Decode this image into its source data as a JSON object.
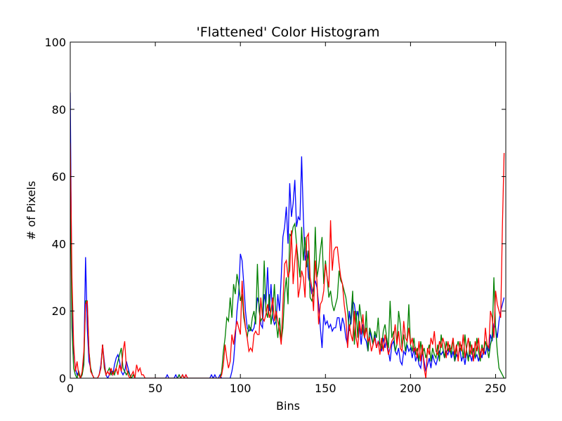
{
  "chart_data": {
    "type": "line",
    "title": "'Flattened' Color Histogram",
    "xlabel": "Bins",
    "ylabel": "# of Pixels",
    "xlim": [
      0,
      256
    ],
    "ylim": [
      0,
      100
    ],
    "xticks": [
      0,
      50,
      100,
      150,
      200,
      250
    ],
    "yticks": [
      0,
      20,
      40,
      60,
      80,
      100
    ],
    "x": [
      0,
      1,
      2,
      3,
      4,
      5,
      6,
      7,
      8,
      9,
      10,
      11,
      12,
      13,
      14,
      15,
      16,
      17,
      18,
      19,
      20,
      21,
      22,
      23,
      24,
      25,
      26,
      27,
      28,
      29,
      30,
      31,
      32,
      33,
      34,
      35,
      36,
      37,
      38,
      39,
      40,
      41,
      42,
      43,
      44,
      45,
      46,
      47,
      48,
      49,
      50,
      51,
      52,
      53,
      54,
      55,
      56,
      57,
      58,
      59,
      60,
      61,
      62,
      63,
      64,
      65,
      66,
      67,
      68,
      69,
      70,
      71,
      72,
      73,
      74,
      75,
      76,
      77,
      78,
      79,
      80,
      81,
      82,
      83,
      84,
      85,
      86,
      87,
      88,
      89,
      90,
      91,
      92,
      93,
      94,
      95,
      96,
      97,
      98,
      99,
      100,
      101,
      102,
      103,
      104,
      105,
      106,
      107,
      108,
      109,
      110,
      111,
      112,
      113,
      114,
      115,
      116,
      117,
      118,
      119,
      120,
      121,
      122,
      123,
      124,
      125,
      126,
      127,
      128,
      129,
      130,
      131,
      132,
      133,
      134,
      135,
      136,
      137,
      138,
      139,
      140,
      141,
      142,
      143,
      144,
      145,
      146,
      147,
      148,
      149,
      150,
      151,
      152,
      153,
      154,
      155,
      156,
      157,
      158,
      159,
      160,
      161,
      162,
      163,
      164,
      165,
      166,
      167,
      168,
      169,
      170,
      171,
      172,
      173,
      174,
      175,
      176,
      177,
      178,
      179,
      180,
      181,
      182,
      183,
      184,
      185,
      186,
      187,
      188,
      189,
      190,
      191,
      192,
      193,
      194,
      195,
      196,
      197,
      198,
      199,
      200,
      201,
      202,
      203,
      204,
      205,
      206,
      207,
      208,
      209,
      210,
      211,
      212,
      213,
      214,
      215,
      216,
      217,
      218,
      219,
      220,
      221,
      222,
      223,
      224,
      225,
      226,
      227,
      228,
      229,
      230,
      231,
      232,
      233,
      234,
      235,
      236,
      237,
      238,
      239,
      240,
      241,
      242,
      243,
      244,
      245,
      246,
      247,
      248,
      249,
      250,
      251,
      252,
      253,
      254,
      255
    ],
    "series": [
      {
        "color": "#0000ff",
        "values": [
          85,
          20,
          8,
          3,
          1,
          2,
          0,
          1,
          5,
          36,
          15,
          5,
          3,
          1,
          0,
          0,
          0,
          1,
          4,
          10,
          5,
          1,
          0,
          1,
          2,
          1,
          4,
          6,
          7,
          5,
          2,
          1,
          2,
          5,
          3,
          1,
          0,
          0,
          0,
          0,
          0,
          0,
          0,
          0,
          0,
          0,
          0,
          0,
          0,
          0,
          0,
          0,
          0,
          0,
          0,
          0,
          0,
          1,
          0,
          0,
          0,
          0,
          1,
          0,
          1,
          0,
          1,
          0,
          1,
          0,
          0,
          0,
          0,
          0,
          0,
          0,
          0,
          0,
          0,
          0,
          0,
          0,
          0,
          1,
          0,
          1,
          0,
          0,
          1,
          0,
          0,
          0,
          0,
          0,
          0,
          2,
          5,
          12,
          20,
          25,
          37,
          35,
          28,
          20,
          15,
          14,
          15,
          14,
          15,
          18,
          24,
          22,
          16,
          15,
          25,
          22,
          33,
          20,
          28,
          18,
          16,
          17,
          25,
          20,
          30,
          42,
          45,
          51,
          40,
          58,
          48,
          52,
          59,
          45,
          48,
          47,
          66,
          48,
          35,
          38,
          30,
          28,
          25,
          27,
          29,
          27,
          22,
          15,
          9,
          19,
          16,
          17,
          15,
          16,
          14,
          15,
          15,
          18,
          18,
          14,
          18,
          16,
          12,
          10,
          20,
          16,
          23,
          22,
          18,
          20,
          15,
          10,
          16,
          12,
          11,
          8,
          14,
          12,
          10,
          13,
          9,
          11,
          10,
          8,
          12,
          9,
          12,
          8,
          5,
          10,
          11,
          8,
          7,
          9,
          5,
          4,
          8,
          7,
          10,
          8,
          9,
          6,
          9,
          5,
          7,
          4,
          3,
          8,
          5,
          2,
          4,
          6,
          3,
          7,
          5,
          4,
          6,
          8,
          7,
          8,
          6,
          8,
          7,
          9,
          6,
          8,
          5,
          7,
          6,
          9,
          5,
          7,
          4,
          8,
          6,
          7,
          5,
          9,
          6,
          7,
          5,
          8,
          6,
          9,
          7,
          10,
          8,
          13,
          11,
          16,
          15,
          12,
          17,
          20,
          22,
          24
        ]
      },
      {
        "color": "#008000",
        "values": [
          60,
          15,
          3,
          1,
          0,
          2,
          0,
          1,
          4,
          23,
          23,
          8,
          3,
          1,
          0,
          0,
          0,
          1,
          3,
          10,
          3,
          1,
          2,
          3,
          1,
          2,
          1,
          3,
          5,
          7,
          9,
          3,
          2,
          1,
          2,
          1,
          0,
          1,
          0,
          0,
          0,
          0,
          0,
          0,
          0,
          0,
          0,
          0,
          0,
          0,
          0,
          0,
          0,
          0,
          0,
          0,
          0,
          0,
          0,
          0,
          0,
          0,
          0,
          0,
          1,
          0,
          1,
          0,
          0,
          0,
          0,
          0,
          0,
          0,
          0,
          0,
          0,
          0,
          0,
          0,
          0,
          0,
          0,
          0,
          0,
          0,
          0,
          0,
          0,
          2,
          8,
          12,
          18,
          17,
          24,
          18,
          28,
          25,
          31,
          28,
          23,
          25,
          18,
          15,
          12,
          16,
          14,
          18,
          20,
          16,
          34,
          20,
          17,
          18,
          35,
          20,
          18,
          25,
          16,
          20,
          28,
          17,
          12,
          18,
          11,
          15,
          25,
          30,
          22,
          43,
          42,
          45,
          46,
          40,
          35,
          30,
          45,
          35,
          42,
          33,
          38,
          24,
          23,
          25,
          45,
          30,
          33,
          38,
          42,
          28,
          35,
          30,
          24,
          26,
          22,
          20,
          22,
          24,
          32,
          29,
          28,
          26,
          24,
          20,
          14,
          18,
          26,
          10,
          20,
          12,
          22,
          18,
          14,
          12,
          20,
          8,
          15,
          13,
          10,
          14,
          12,
          18,
          10,
          9,
          14,
          16,
          12,
          9,
          23,
          12,
          14,
          8,
          10,
          20,
          16,
          9,
          13,
          8,
          11,
          22,
          10,
          8,
          12,
          7,
          9,
          5,
          11,
          7,
          9,
          6,
          8,
          10,
          5,
          9,
          7,
          6,
          10,
          5,
          13,
          9,
          6,
          11,
          8,
          10,
          7,
          12,
          5,
          9,
          11,
          8,
          10,
          6,
          13,
          8,
          5,
          11,
          7,
          9,
          6,
          12,
          8,
          5,
          10,
          7,
          11,
          9,
          6,
          10,
          12,
          30,
          15,
          8,
          3,
          2,
          1,
          0
        ]
      },
      {
        "color": "#ff0000",
        "values": [
          70,
          30,
          10,
          2,
          5,
          1,
          0,
          2,
          8,
          22,
          23,
          8,
          2,
          1,
          0,
          0,
          0,
          1,
          3,
          10,
          4,
          1,
          2,
          1,
          3,
          1,
          2,
          3,
          1,
          4,
          2,
          8,
          11,
          3,
          1,
          0,
          1,
          2,
          0,
          4,
          2,
          3,
          1,
          1,
          0,
          0,
          0,
          0,
          0,
          0,
          0,
          0,
          0,
          0,
          0,
          0,
          0,
          0,
          0,
          0,
          0,
          0,
          0,
          0,
          0,
          0,
          1,
          0,
          1,
          0,
          0,
          0,
          0,
          0,
          0,
          0,
          0,
          0,
          0,
          0,
          0,
          0,
          0,
          0,
          0,
          0,
          0,
          0,
          0,
          1,
          4,
          10,
          6,
          3,
          5,
          13,
          10,
          14,
          17,
          15,
          13,
          29,
          20,
          15,
          12,
          8,
          9,
          8,
          13,
          14,
          13,
          13,
          24,
          18,
          17,
          19,
          22,
          18,
          20,
          24,
          17,
          20,
          17,
          14,
          10,
          22,
          34,
          35,
          30,
          32,
          44,
          28,
          35,
          40,
          24,
          27,
          32,
          30,
          24,
          42,
          43,
          30,
          27,
          20,
          35,
          29,
          16,
          22,
          23,
          26,
          34,
          30,
          27,
          47,
          32,
          38,
          39,
          39,
          34,
          30,
          28,
          22,
          18,
          9,
          16,
          13,
          11,
          20,
          12,
          9,
          17,
          13,
          19,
          12,
          15,
          11,
          12,
          8,
          10,
          12,
          9,
          11,
          7,
          12,
          8,
          13,
          10,
          7,
          9,
          11,
          12,
          16,
          10,
          14,
          9,
          8,
          17,
          12,
          11,
          15,
          10,
          12,
          8,
          9,
          6,
          11,
          5,
          10,
          3,
          0,
          9,
          7,
          12,
          10,
          14,
          8,
          7,
          11,
          9,
          12,
          10,
          6,
          11,
          8,
          9,
          12,
          7,
          10,
          5,
          11,
          8,
          13,
          6,
          9,
          12,
          7,
          10,
          5,
          11,
          8,
          12,
          6,
          9,
          7,
          15,
          10,
          9,
          20,
          18,
          12,
          26,
          22,
          20,
          18,
          45,
          67
        ]
      }
    ]
  }
}
